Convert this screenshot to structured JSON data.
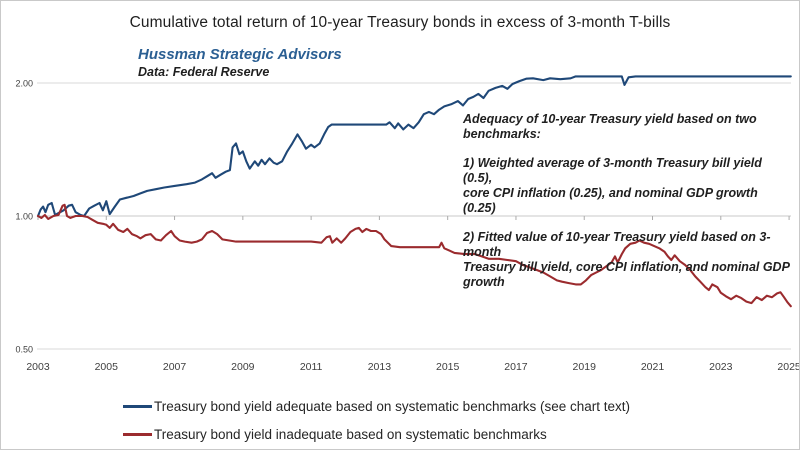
{
  "title": "Cumulative total return of 10-year Treasury bonds in excess of 3-month T-bills",
  "header": {
    "brand": "Hussman Strategic Advisors",
    "source": "Data: Federal Reserve"
  },
  "annotation": {
    "heading": "Adequacy of 10-year Treasury yield based on two benchmarks:",
    "item1": "1) Weighted average of 3-month Treasury bill yield (0.5),\ncore CPI inflation (0.25), and nominal GDP growth (0.25)",
    "item2": "2) Fitted value of 10-year Treasury yield based on 3-month\nTreasury bill yield, core CPI inflation, and nominal GDP growth"
  },
  "legend": [
    {
      "label": "Treasury bond yield adequate based on systematic benchmarks (see chart text)",
      "color": "#1F4878"
    },
    {
      "label": "Treasury bond yield inadequate based on systematic benchmarks",
      "color": "#9B2B2E"
    }
  ],
  "colors": {
    "adequate_line": "#1F4878",
    "inadequate_line": "#9B2B2E",
    "brand_text": "#2B5F93",
    "gridline": "#D9D9D9",
    "axis_line": "#C9C9C9",
    "tick_mark": "#ABABAB",
    "axis_text": "#404040"
  },
  "chart_data": {
    "type": "line",
    "title": "Cumulative total return of 10-year Treasury bonds in excess of 3-month T-bills",
    "xlabel": "",
    "ylabel": "",
    "x_axis": {
      "ticks": [
        2003,
        2005,
        2007,
        2009,
        2011,
        2013,
        2015,
        2017,
        2019,
        2021,
        2023,
        2025
      ],
      "range": [
        2002.97,
        2025.1
      ]
    },
    "y_axis": {
      "scale": "log2",
      "ticks": [
        2.0,
        1.0,
        0.5
      ],
      "tick_labels": [
        "2.00",
        "1.00",
        "0.50"
      ],
      "axis_crosses_at": 1.0,
      "grid": true
    },
    "legend_position": "bottom",
    "series": [
      {
        "name": "Treasury bond yield adequate based on systematic benchmarks (see chart text)",
        "color": "#1F4878",
        "points": [
          [
            2003.0,
            1.0
          ],
          [
            2003.08,
            1.035
          ],
          [
            2003.15,
            1.05
          ],
          [
            2003.22,
            1.02
          ],
          [
            2003.3,
            1.06
          ],
          [
            2003.4,
            1.07
          ],
          [
            2003.5,
            1.005
          ],
          [
            2003.6,
            1.015
          ],
          [
            2003.75,
            1.03
          ],
          [
            2003.9,
            1.055
          ],
          [
            2004.0,
            1.06
          ],
          [
            2004.1,
            1.02
          ],
          [
            2004.25,
            1.005
          ],
          [
            2004.35,
            1.0
          ],
          [
            2004.5,
            1.04
          ],
          [
            2004.65,
            1.055
          ],
          [
            2004.8,
            1.07
          ],
          [
            2004.9,
            1.03
          ],
          [
            2005.0,
            1.08
          ],
          [
            2005.1,
            1.01
          ],
          [
            2005.25,
            1.05
          ],
          [
            2005.4,
            1.09
          ],
          [
            2005.6,
            1.1
          ],
          [
            2005.8,
            1.11
          ],
          [
            2006.0,
            1.125
          ],
          [
            2006.2,
            1.14
          ],
          [
            2006.45,
            1.15
          ],
          [
            2006.7,
            1.16
          ],
          [
            2007.0,
            1.17
          ],
          [
            2007.35,
            1.18
          ],
          [
            2007.6,
            1.19
          ],
          [
            2007.8,
            1.21
          ],
          [
            2007.95,
            1.23
          ],
          [
            2008.1,
            1.25
          ],
          [
            2008.2,
            1.22
          ],
          [
            2008.35,
            1.24
          ],
          [
            2008.5,
            1.26
          ],
          [
            2008.62,
            1.27
          ],
          [
            2008.7,
            1.43
          ],
          [
            2008.8,
            1.46
          ],
          [
            2008.9,
            1.38
          ],
          [
            2009.0,
            1.4
          ],
          [
            2009.1,
            1.33
          ],
          [
            2009.2,
            1.28
          ],
          [
            2009.35,
            1.33
          ],
          [
            2009.45,
            1.3
          ],
          [
            2009.55,
            1.34
          ],
          [
            2009.65,
            1.31
          ],
          [
            2009.78,
            1.35
          ],
          [
            2009.9,
            1.32
          ],
          [
            2010.0,
            1.31
          ],
          [
            2010.15,
            1.33
          ],
          [
            2010.3,
            1.4
          ],
          [
            2010.45,
            1.46
          ],
          [
            2010.6,
            1.53
          ],
          [
            2010.72,
            1.48
          ],
          [
            2010.85,
            1.42
          ],
          [
            2011.0,
            1.45
          ],
          [
            2011.1,
            1.43
          ],
          [
            2011.25,
            1.46
          ],
          [
            2011.38,
            1.53
          ],
          [
            2011.5,
            1.59
          ],
          [
            2011.6,
            1.61
          ],
          [
            2012.0,
            1.61
          ],
          [
            2012.5,
            1.61
          ],
          [
            2013.0,
            1.61
          ],
          [
            2013.2,
            1.61
          ],
          [
            2013.3,
            1.63
          ],
          [
            2013.45,
            1.58
          ],
          [
            2013.55,
            1.62
          ],
          [
            2013.7,
            1.57
          ],
          [
            2013.85,
            1.61
          ],
          [
            2014.0,
            1.58
          ],
          [
            2014.15,
            1.63
          ],
          [
            2014.3,
            1.7
          ],
          [
            2014.45,
            1.72
          ],
          [
            2014.6,
            1.7
          ],
          [
            2014.75,
            1.74
          ],
          [
            2014.9,
            1.77
          ],
          [
            2015.1,
            1.79
          ],
          [
            2015.3,
            1.82
          ],
          [
            2015.45,
            1.78
          ],
          [
            2015.6,
            1.84
          ],
          [
            2015.75,
            1.86
          ],
          [
            2015.9,
            1.89
          ],
          [
            2016.05,
            1.85
          ],
          [
            2016.2,
            1.92
          ],
          [
            2016.4,
            1.95
          ],
          [
            2016.6,
            1.97
          ],
          [
            2016.75,
            1.94
          ],
          [
            2016.9,
            1.99
          ],
          [
            2017.1,
            2.02
          ],
          [
            2017.3,
            2.045
          ],
          [
            2017.5,
            2.05
          ],
          [
            2017.8,
            2.03
          ],
          [
            2018.0,
            2.05
          ],
          [
            2018.3,
            2.04
          ],
          [
            2018.6,
            2.05
          ],
          [
            2018.75,
            2.07
          ],
          [
            2019.2,
            2.07
          ],
          [
            2019.7,
            2.07
          ],
          [
            2020.1,
            2.07
          ],
          [
            2020.18,
            1.98
          ],
          [
            2020.3,
            2.06
          ],
          [
            2020.5,
            2.07
          ],
          [
            2021.0,
            2.07
          ],
          [
            2022.0,
            2.07
          ],
          [
            2023.0,
            2.07
          ],
          [
            2024.0,
            2.07
          ],
          [
            2025.05,
            2.07
          ]
        ]
      },
      {
        "name": "Treasury bond yield inadequate based on systematic benchmarks",
        "color": "#9B2B2E",
        "points": [
          [
            2003.0,
            1.0
          ],
          [
            2003.1,
            0.99
          ],
          [
            2003.2,
            1.005
          ],
          [
            2003.3,
            0.985
          ],
          [
            2003.45,
            1.0
          ],
          [
            2003.6,
            1.005
          ],
          [
            2003.72,
            1.055
          ],
          [
            2003.78,
            1.06
          ],
          [
            2003.85,
            1.0
          ],
          [
            2003.95,
            0.99
          ],
          [
            2004.1,
            1.0
          ],
          [
            2004.3,
            1.0
          ],
          [
            2004.45,
            0.995
          ],
          [
            2004.6,
            0.98
          ],
          [
            2004.75,
            0.965
          ],
          [
            2004.9,
            0.96
          ],
          [
            2005.0,
            0.955
          ],
          [
            2005.1,
            0.94
          ],
          [
            2005.2,
            0.96
          ],
          [
            2005.35,
            0.93
          ],
          [
            2005.5,
            0.92
          ],
          [
            2005.62,
            0.935
          ],
          [
            2005.75,
            0.91
          ],
          [
            2005.9,
            0.9
          ],
          [
            2006.0,
            0.89
          ],
          [
            2006.15,
            0.905
          ],
          [
            2006.3,
            0.91
          ],
          [
            2006.45,
            0.885
          ],
          [
            2006.6,
            0.88
          ],
          [
            2006.75,
            0.905
          ],
          [
            2006.9,
            0.925
          ],
          [
            2007.0,
            0.9
          ],
          [
            2007.15,
            0.88
          ],
          [
            2007.3,
            0.875
          ],
          [
            2007.5,
            0.87
          ],
          [
            2007.65,
            0.875
          ],
          [
            2007.8,
            0.885
          ],
          [
            2007.95,
            0.915
          ],
          [
            2008.1,
            0.925
          ],
          [
            2008.25,
            0.91
          ],
          [
            2008.4,
            0.885
          ],
          [
            2008.6,
            0.88
          ],
          [
            2008.8,
            0.875
          ],
          [
            2009.2,
            0.875
          ],
          [
            2009.6,
            0.875
          ],
          [
            2010.0,
            0.875
          ],
          [
            2010.5,
            0.875
          ],
          [
            2011.0,
            0.875
          ],
          [
            2011.3,
            0.87
          ],
          [
            2011.45,
            0.895
          ],
          [
            2011.55,
            0.9
          ],
          [
            2011.62,
            0.87
          ],
          [
            2011.75,
            0.89
          ],
          [
            2011.88,
            0.87
          ],
          [
            2012.0,
            0.89
          ],
          [
            2012.15,
            0.92
          ],
          [
            2012.3,
            0.935
          ],
          [
            2012.4,
            0.94
          ],
          [
            2012.5,
            0.92
          ],
          [
            2012.62,
            0.935
          ],
          [
            2012.75,
            0.925
          ],
          [
            2012.9,
            0.925
          ],
          [
            2013.05,
            0.91
          ],
          [
            2013.15,
            0.885
          ],
          [
            2013.25,
            0.87
          ],
          [
            2013.35,
            0.855
          ],
          [
            2013.6,
            0.85
          ],
          [
            2014.0,
            0.85
          ],
          [
            2014.4,
            0.85
          ],
          [
            2014.75,
            0.85
          ],
          [
            2014.82,
            0.87
          ],
          [
            2014.9,
            0.845
          ],
          [
            2015.05,
            0.835
          ],
          [
            2015.2,
            0.825
          ],
          [
            2015.5,
            0.82
          ],
          [
            2015.8,
            0.82
          ],
          [
            2016.0,
            0.81
          ],
          [
            2016.2,
            0.8
          ],
          [
            2016.5,
            0.8
          ],
          [
            2016.75,
            0.795
          ],
          [
            2017.0,
            0.79
          ],
          [
            2017.2,
            0.775
          ],
          [
            2017.4,
            0.765
          ],
          [
            2017.6,
            0.755
          ],
          [
            2017.8,
            0.745
          ],
          [
            2018.0,
            0.73
          ],
          [
            2018.2,
            0.715
          ],
          [
            2018.35,
            0.71
          ],
          [
            2018.55,
            0.705
          ],
          [
            2018.75,
            0.7
          ],
          [
            2018.9,
            0.7
          ],
          [
            2019.05,
            0.715
          ],
          [
            2019.2,
            0.735
          ],
          [
            2019.35,
            0.745
          ],
          [
            2019.5,
            0.755
          ],
          [
            2019.65,
            0.77
          ],
          [
            2019.8,
            0.785
          ],
          [
            2019.9,
            0.81
          ],
          [
            2019.98,
            0.785
          ],
          [
            2020.1,
            0.82
          ],
          [
            2020.2,
            0.845
          ],
          [
            2020.35,
            0.865
          ],
          [
            2020.5,
            0.87
          ],
          [
            2020.62,
            0.88
          ],
          [
            2020.75,
            0.87
          ],
          [
            2020.9,
            0.865
          ],
          [
            2021.05,
            0.855
          ],
          [
            2021.2,
            0.845
          ],
          [
            2021.35,
            0.83
          ],
          [
            2021.45,
            0.81
          ],
          [
            2021.55,
            0.795
          ],
          [
            2021.65,
            0.815
          ],
          [
            2021.8,
            0.79
          ],
          [
            2021.95,
            0.775
          ],
          [
            2022.1,
            0.755
          ],
          [
            2022.25,
            0.73
          ],
          [
            2022.4,
            0.71
          ],
          [
            2022.55,
            0.69
          ],
          [
            2022.65,
            0.68
          ],
          [
            2022.75,
            0.7
          ],
          [
            2022.9,
            0.69
          ],
          [
            2023.0,
            0.67
          ],
          [
            2023.15,
            0.658
          ],
          [
            2023.3,
            0.648
          ],
          [
            2023.45,
            0.66
          ],
          [
            2023.6,
            0.652
          ],
          [
            2023.75,
            0.64
          ],
          [
            2023.9,
            0.635
          ],
          [
            2024.05,
            0.655
          ],
          [
            2024.2,
            0.645
          ],
          [
            2024.35,
            0.66
          ],
          [
            2024.5,
            0.655
          ],
          [
            2024.65,
            0.668
          ],
          [
            2024.75,
            0.672
          ],
          [
            2024.85,
            0.655
          ],
          [
            2024.95,
            0.638
          ],
          [
            2025.05,
            0.625
          ]
        ]
      }
    ]
  }
}
